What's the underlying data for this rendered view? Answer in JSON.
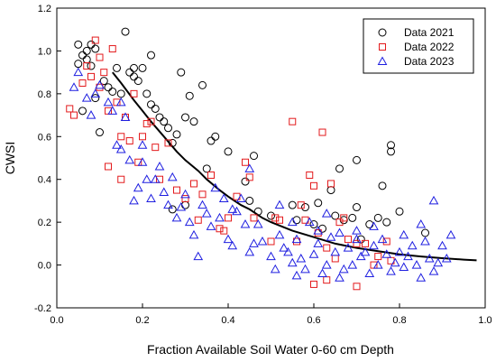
{
  "chart_data": {
    "type": "scatter",
    "title": "",
    "xlabel": "Fraction Available Soil Water 0-60 cm Depth",
    "ylabel": "CWSI",
    "xlim": [
      0.0,
      1.0
    ],
    "ylim": [
      -0.2,
      1.2
    ],
    "x_ticks": [
      "0.0",
      "0.2",
      "0.4",
      "0.6",
      "0.8",
      "1.0"
    ],
    "y_ticks": [
      "-0.2",
      "0.0",
      "0.2",
      "0.4",
      "0.6",
      "0.8",
      "1.0",
      "1.2"
    ],
    "grid": false,
    "legend_position": "top-right",
    "series": [
      {
        "name": "Data 2021",
        "marker": "circle",
        "color": "#000000",
        "points": [
          [
            0.05,
            1.03
          ],
          [
            0.06,
            0.98
          ],
          [
            0.07,
            1.0
          ],
          [
            0.08,
            1.03
          ],
          [
            0.09,
            1.01
          ],
          [
            0.05,
            0.94
          ],
          [
            0.07,
            0.96
          ],
          [
            0.08,
            0.93
          ],
          [
            0.06,
            0.72
          ],
          [
            0.09,
            0.78
          ],
          [
            0.1,
            0.62
          ],
          [
            0.11,
            0.86
          ],
          [
            0.12,
            0.83
          ],
          [
            0.13,
            0.81
          ],
          [
            0.14,
            0.92
          ],
          [
            0.16,
            1.09
          ],
          [
            0.15,
            0.8
          ],
          [
            0.17,
            0.9
          ],
          [
            0.18,
            0.88
          ],
          [
            0.19,
            0.86
          ],
          [
            0.2,
            0.92
          ],
          [
            0.21,
            0.8
          ],
          [
            0.22,
            0.75
          ],
          [
            0.23,
            0.73
          ],
          [
            0.25,
            0.67
          ],
          [
            0.26,
            0.64
          ],
          [
            0.24,
            0.69
          ],
          [
            0.27,
            0.57
          ],
          [
            0.28,
            0.61
          ],
          [
            0.29,
            0.9
          ],
          [
            0.3,
            0.69
          ],
          [
            0.31,
            0.79
          ],
          [
            0.32,
            0.67
          ],
          [
            0.34,
            0.84
          ],
          [
            0.35,
            0.45
          ],
          [
            0.36,
            0.58
          ],
          [
            0.37,
            0.6
          ],
          [
            0.4,
            0.53
          ],
          [
            0.44,
            0.39
          ],
          [
            0.45,
            0.3
          ],
          [
            0.46,
            0.51
          ],
          [
            0.27,
            0.26
          ],
          [
            0.3,
            0.28
          ],
          [
            0.47,
            0.25
          ],
          [
            0.5,
            0.23
          ],
          [
            0.55,
            0.28
          ],
          [
            0.56,
            0.21
          ],
          [
            0.58,
            0.27
          ],
          [
            0.6,
            0.19
          ],
          [
            0.61,
            0.29
          ],
          [
            0.62,
            0.17
          ],
          [
            0.64,
            0.35
          ],
          [
            0.65,
            0.23
          ],
          [
            0.66,
            0.45
          ],
          [
            0.67,
            0.21
          ],
          [
            0.69,
            0.22
          ],
          [
            0.7,
            0.49
          ],
          [
            0.7,
            0.27
          ],
          [
            0.71,
            0.12
          ],
          [
            0.73,
            0.19
          ],
          [
            0.75,
            0.22
          ],
          [
            0.76,
            0.37
          ],
          [
            0.77,
            0.2
          ],
          [
            0.78,
            0.56
          ],
          [
            0.78,
            0.53
          ],
          [
            0.8,
            0.25
          ],
          [
            0.86,
            0.15
          ],
          [
            0.22,
            0.98
          ],
          [
            0.18,
            0.92
          ]
        ]
      },
      {
        "name": "Data 2022",
        "marker": "square",
        "color": "#e31a1c",
        "points": [
          [
            0.03,
            0.73
          ],
          [
            0.04,
            0.7
          ],
          [
            0.06,
            0.85
          ],
          [
            0.07,
            0.93
          ],
          [
            0.08,
            0.88
          ],
          [
            0.09,
            1.05
          ],
          [
            0.1,
            0.97
          ],
          [
            0.11,
            0.9
          ],
          [
            0.12,
            0.72
          ],
          [
            0.13,
            1.01
          ],
          [
            0.12,
            0.46
          ],
          [
            0.14,
            0.76
          ],
          [
            0.15,
            0.6
          ],
          [
            0.16,
            0.69
          ],
          [
            0.17,
            0.58
          ],
          [
            0.18,
            0.8
          ],
          [
            0.19,
            0.48
          ],
          [
            0.2,
            0.6
          ],
          [
            0.21,
            0.66
          ],
          [
            0.22,
            0.67
          ],
          [
            0.23,
            0.55
          ],
          [
            0.24,
            0.4
          ],
          [
            0.26,
            0.57
          ],
          [
            0.28,
            0.35
          ],
          [
            0.3,
            0.31
          ],
          [
            0.32,
            0.38
          ],
          [
            0.33,
            0.21
          ],
          [
            0.34,
            0.33
          ],
          [
            0.36,
            0.42
          ],
          [
            0.38,
            0.17
          ],
          [
            0.39,
            0.16
          ],
          [
            0.4,
            0.22
          ],
          [
            0.42,
            0.32
          ],
          [
            0.44,
            0.48
          ],
          [
            0.45,
            0.41
          ],
          [
            0.46,
            0.22
          ],
          [
            0.5,
            0.11
          ],
          [
            0.51,
            0.22
          ],
          [
            0.52,
            0.21
          ],
          [
            0.55,
            0.67
          ],
          [
            0.56,
            0.11
          ],
          [
            0.57,
            0.28
          ],
          [
            0.58,
            0.21
          ],
          [
            0.59,
            0.42
          ],
          [
            0.6,
            0.37
          ],
          [
            0.61,
            0.15
          ],
          [
            0.62,
            0.62
          ],
          [
            0.63,
            0.08
          ],
          [
            0.64,
            0.38
          ],
          [
            0.65,
            0.03
          ],
          [
            0.66,
            0.2
          ],
          [
            0.67,
            0.22
          ],
          [
            0.68,
            0.12
          ],
          [
            0.7,
            0.1
          ],
          [
            0.72,
            0.1
          ],
          [
            0.74,
            0.0
          ],
          [
            0.75,
            0.04
          ],
          [
            0.6,
            -0.09
          ],
          [
            0.63,
            -0.07
          ],
          [
            0.7,
            -0.1
          ],
          [
            0.77,
            0.11
          ],
          [
            0.78,
            0.02
          ],
          [
            0.15,
            0.4
          ],
          [
            0.1,
            0.83
          ]
        ]
      },
      {
        "name": "Data 2023",
        "marker": "triangle",
        "color": "#1f1fe0",
        "points": [
          [
            0.04,
            0.83
          ],
          [
            0.05,
            0.9
          ],
          [
            0.07,
            0.78
          ],
          [
            0.08,
            0.7
          ],
          [
            0.09,
            0.8
          ],
          [
            0.1,
            0.84
          ],
          [
            0.12,
            0.76
          ],
          [
            0.13,
            0.72
          ],
          [
            0.14,
            0.56
          ],
          [
            0.15,
            0.54
          ],
          [
            0.16,
            0.69
          ],
          [
            0.17,
            0.49
          ],
          [
            0.18,
            0.3
          ],
          [
            0.19,
            0.36
          ],
          [
            0.2,
            0.48
          ],
          [
            0.21,
            0.4
          ],
          [
            0.22,
            0.31
          ],
          [
            0.23,
            0.4
          ],
          [
            0.24,
            0.46
          ],
          [
            0.25,
            0.34
          ],
          [
            0.26,
            0.28
          ],
          [
            0.27,
            0.41
          ],
          [
            0.28,
            0.22
          ],
          [
            0.29,
            0.27
          ],
          [
            0.3,
            0.33
          ],
          [
            0.31,
            0.2
          ],
          [
            0.32,
            0.14
          ],
          [
            0.33,
            0.04
          ],
          [
            0.34,
            0.28
          ],
          [
            0.35,
            0.24
          ],
          [
            0.36,
            0.18
          ],
          [
            0.37,
            0.36
          ],
          [
            0.38,
            0.22
          ],
          [
            0.39,
            0.31
          ],
          [
            0.4,
            0.12
          ],
          [
            0.41,
            0.09
          ],
          [
            0.42,
            0.25
          ],
          [
            0.43,
            0.31
          ],
          [
            0.44,
            0.19
          ],
          [
            0.45,
            0.06
          ],
          [
            0.46,
            0.1
          ],
          [
            0.48,
            0.11
          ],
          [
            0.5,
            0.04
          ],
          [
            0.51,
            -0.02
          ],
          [
            0.52,
            0.14
          ],
          [
            0.53,
            0.08
          ],
          [
            0.54,
            0.06
          ],
          [
            0.55,
            0.01
          ],
          [
            0.56,
            0.12
          ],
          [
            0.57,
            0.03
          ],
          [
            0.58,
            -0.02
          ],
          [
            0.59,
            0.2
          ],
          [
            0.6,
            0.05
          ],
          [
            0.61,
            0.1
          ],
          [
            0.62,
            -0.04
          ],
          [
            0.63,
            0.0
          ],
          [
            0.64,
            0.13
          ],
          [
            0.65,
            0.06
          ],
          [
            0.66,
            0.15
          ],
          [
            0.67,
            -0.02
          ],
          [
            0.68,
            0.08
          ],
          [
            0.69,
            0.0
          ],
          [
            0.7,
            0.12
          ],
          [
            0.71,
            0.04
          ],
          [
            0.72,
            0.06
          ],
          [
            0.73,
            -0.04
          ],
          [
            0.74,
            0.09
          ],
          [
            0.75,
            0.0
          ],
          [
            0.76,
            0.12
          ],
          [
            0.77,
            0.05
          ],
          [
            0.78,
            -0.03
          ],
          [
            0.79,
            0.01
          ],
          [
            0.8,
            0.06
          ],
          [
            0.81,
            -0.01
          ],
          [
            0.82,
            0.04
          ],
          [
            0.83,
            0.09
          ],
          [
            0.84,
            0.0
          ],
          [
            0.85,
            -0.06
          ],
          [
            0.86,
            0.11
          ],
          [
            0.87,
            0.03
          ],
          [
            0.88,
            -0.03
          ],
          [
            0.89,
            0.01
          ],
          [
            0.9,
            0.09
          ],
          [
            0.91,
            0.03
          ],
          [
            0.92,
            0.14
          ],
          [
            0.45,
            0.45
          ],
          [
            0.52,
            0.28
          ],
          [
            0.63,
            0.24
          ],
          [
            0.61,
            0.16
          ],
          [
            0.55,
            0.2
          ],
          [
            0.47,
            0.19
          ],
          [
            0.2,
            0.56
          ],
          [
            0.15,
            0.76
          ],
          [
            0.41,
            0.26
          ],
          [
            0.56,
            -0.05
          ],
          [
            0.66,
            -0.06
          ],
          [
            0.74,
            0.18
          ],
          [
            0.7,
            0.16
          ],
          [
            0.81,
            0.14
          ],
          [
            0.88,
            0.3
          ],
          [
            0.85,
            0.19
          ]
        ]
      }
    ],
    "fit_curve": {
      "type": "exponential",
      "points": [
        [
          0.13,
          0.9
        ],
        [
          0.15,
          0.85
        ],
        [
          0.18,
          0.77
        ],
        [
          0.2,
          0.72
        ],
        [
          0.22,
          0.67
        ],
        [
          0.25,
          0.6
        ],
        [
          0.28,
          0.53
        ],
        [
          0.3,
          0.49
        ],
        [
          0.33,
          0.44
        ],
        [
          0.35,
          0.4
        ],
        [
          0.38,
          0.35
        ],
        [
          0.4,
          0.32
        ],
        [
          0.43,
          0.28
        ],
        [
          0.45,
          0.26
        ],
        [
          0.48,
          0.22
        ],
        [
          0.5,
          0.2
        ],
        [
          0.55,
          0.16
        ],
        [
          0.6,
          0.13
        ],
        [
          0.65,
          0.1
        ],
        [
          0.7,
          0.08
        ],
        [
          0.75,
          0.065
        ],
        [
          0.8,
          0.05
        ],
        [
          0.85,
          0.04
        ],
        [
          0.9,
          0.032
        ],
        [
          0.95,
          0.025
        ],
        [
          0.98,
          0.022
        ]
      ]
    }
  }
}
